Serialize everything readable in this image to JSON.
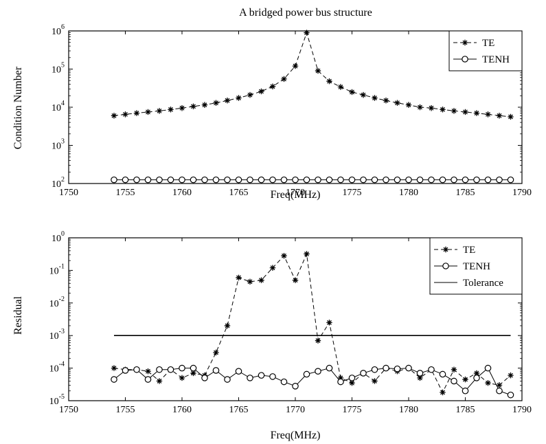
{
  "chart_data": [
    {
      "type": "line",
      "title": "A bridged power bus structure",
      "xlabel": "Freq(MHz)",
      "ylabel": "Condition Number",
      "xlim": [
        1750,
        1790
      ],
      "ylim": [
        100,
        1000000
      ],
      "yscale": "log",
      "xticks": [
        1750,
        1755,
        1760,
        1765,
        1770,
        1775,
        1780,
        1785,
        1790
      ],
      "yticks": [
        {
          "base": "10",
          "exp": "2",
          "value": 100
        },
        {
          "base": "10",
          "exp": "3",
          "value": 1000
        },
        {
          "base": "10",
          "exp": "4",
          "value": 10000
        },
        {
          "base": "10",
          "exp": "5",
          "value": 100000
        },
        {
          "base": "10",
          "exp": "6",
          "value": 1000000
        }
      ],
      "grid": false,
      "legend_position": "top-right",
      "x": [
        1754,
        1755,
        1756,
        1757,
        1758,
        1759,
        1760,
        1761,
        1762,
        1763,
        1764,
        1765,
        1766,
        1767,
        1768,
        1769,
        1770,
        1771,
        1772,
        1773,
        1774,
        1775,
        1776,
        1777,
        1778,
        1779,
        1780,
        1781,
        1782,
        1783,
        1784,
        1785,
        1786,
        1787,
        1788,
        1789
      ],
      "series": [
        {
          "name": "TE",
          "marker": "star",
          "line": "dashed",
          "values": [
            6000,
            6500,
            7000,
            7500,
            8000,
            8700,
            9500,
            10500,
            11500,
            13000,
            15000,
            17500,
            21000,
            26000,
            35000,
            55000,
            120000,
            900000,
            90000,
            48000,
            34000,
            25000,
            21000,
            17500,
            15000,
            13000,
            11500,
            10000,
            9500,
            8700,
            8000,
            7500,
            7000,
            6500,
            6000,
            5600
          ]
        },
        {
          "name": "TENH",
          "marker": "circle",
          "line": "solid",
          "values": [
            125,
            125,
            125,
            125,
            125,
            125,
            125,
            125,
            125,
            125,
            125,
            125,
            125,
            125,
            125,
            125,
            125,
            125,
            125,
            125,
            125,
            125,
            125,
            125,
            125,
            125,
            125,
            125,
            125,
            125,
            125,
            125,
            125,
            125,
            125,
            125
          ]
        }
      ]
    },
    {
      "type": "line",
      "title": "",
      "xlabel": "Freq(MHz)",
      "ylabel": "Residual",
      "xlim": [
        1750,
        1790
      ],
      "ylim": [
        1e-05,
        1
      ],
      "yscale": "log",
      "xticks": [
        1750,
        1755,
        1760,
        1765,
        1770,
        1775,
        1780,
        1785,
        1790
      ],
      "yticks": [
        {
          "base": "10",
          "exp": "-5",
          "value": 1e-05
        },
        {
          "base": "10",
          "exp": "-4",
          "value": 0.0001
        },
        {
          "base": "10",
          "exp": "-3",
          "value": 0.001
        },
        {
          "base": "10",
          "exp": "-2",
          "value": 0.01
        },
        {
          "base": "10",
          "exp": "-1",
          "value": 0.1
        },
        {
          "base": "10",
          "exp": "0",
          "value": 1
        }
      ],
      "grid": false,
      "legend_position": "top-right",
      "x": [
        1754,
        1755,
        1756,
        1757,
        1758,
        1759,
        1760,
        1761,
        1762,
        1763,
        1764,
        1765,
        1766,
        1767,
        1768,
        1769,
        1770,
        1771,
        1772,
        1773,
        1774,
        1775,
        1776,
        1777,
        1778,
        1779,
        1780,
        1781,
        1782,
        1783,
        1784,
        1785,
        1786,
        1787,
        1788,
        1789
      ],
      "series": [
        {
          "name": "TE",
          "marker": "star",
          "line": "dashed",
          "values": [
            0.0001,
            9e-05,
            9e-05,
            8e-05,
            4e-05,
            9e-05,
            5e-05,
            7e-05,
            6e-05,
            0.0003,
            0.002,
            0.06,
            0.045,
            0.05,
            0.12,
            0.28,
            0.05,
            0.32,
            0.0007,
            0.0025,
            5e-05,
            3.5e-05,
            7e-05,
            4e-05,
            0.0001,
            8e-05,
            0.0001,
            5e-05,
            9e-05,
            1.8e-05,
            9e-05,
            4.5e-05,
            7e-05,
            3.5e-05,
            3e-05,
            6e-05
          ]
        },
        {
          "name": "TENH",
          "marker": "circle",
          "line": "solid",
          "values": [
            4.5e-05,
            8.5e-05,
            9e-05,
            4.5e-05,
            9e-05,
            9e-05,
            0.0001,
            0.0001,
            5e-05,
            8.5e-05,
            4.5e-05,
            8e-05,
            5e-05,
            6e-05,
            5.5e-05,
            3.8e-05,
            2.8e-05,
            6.5e-05,
            8e-05,
            0.0001,
            3.8e-05,
            5e-05,
            7e-05,
            9e-05,
            0.0001,
            9.5e-05,
            0.0001,
            7e-05,
            9e-05,
            6.5e-05,
            4e-05,
            2e-05,
            5e-05,
            0.0001,
            2e-05,
            1.5e-05
          ]
        },
        {
          "name": "Tolerance",
          "marker": "none",
          "line": "solid",
          "x": [
            1754,
            1789
          ],
          "values": [
            0.001,
            0.001
          ]
        }
      ]
    }
  ]
}
